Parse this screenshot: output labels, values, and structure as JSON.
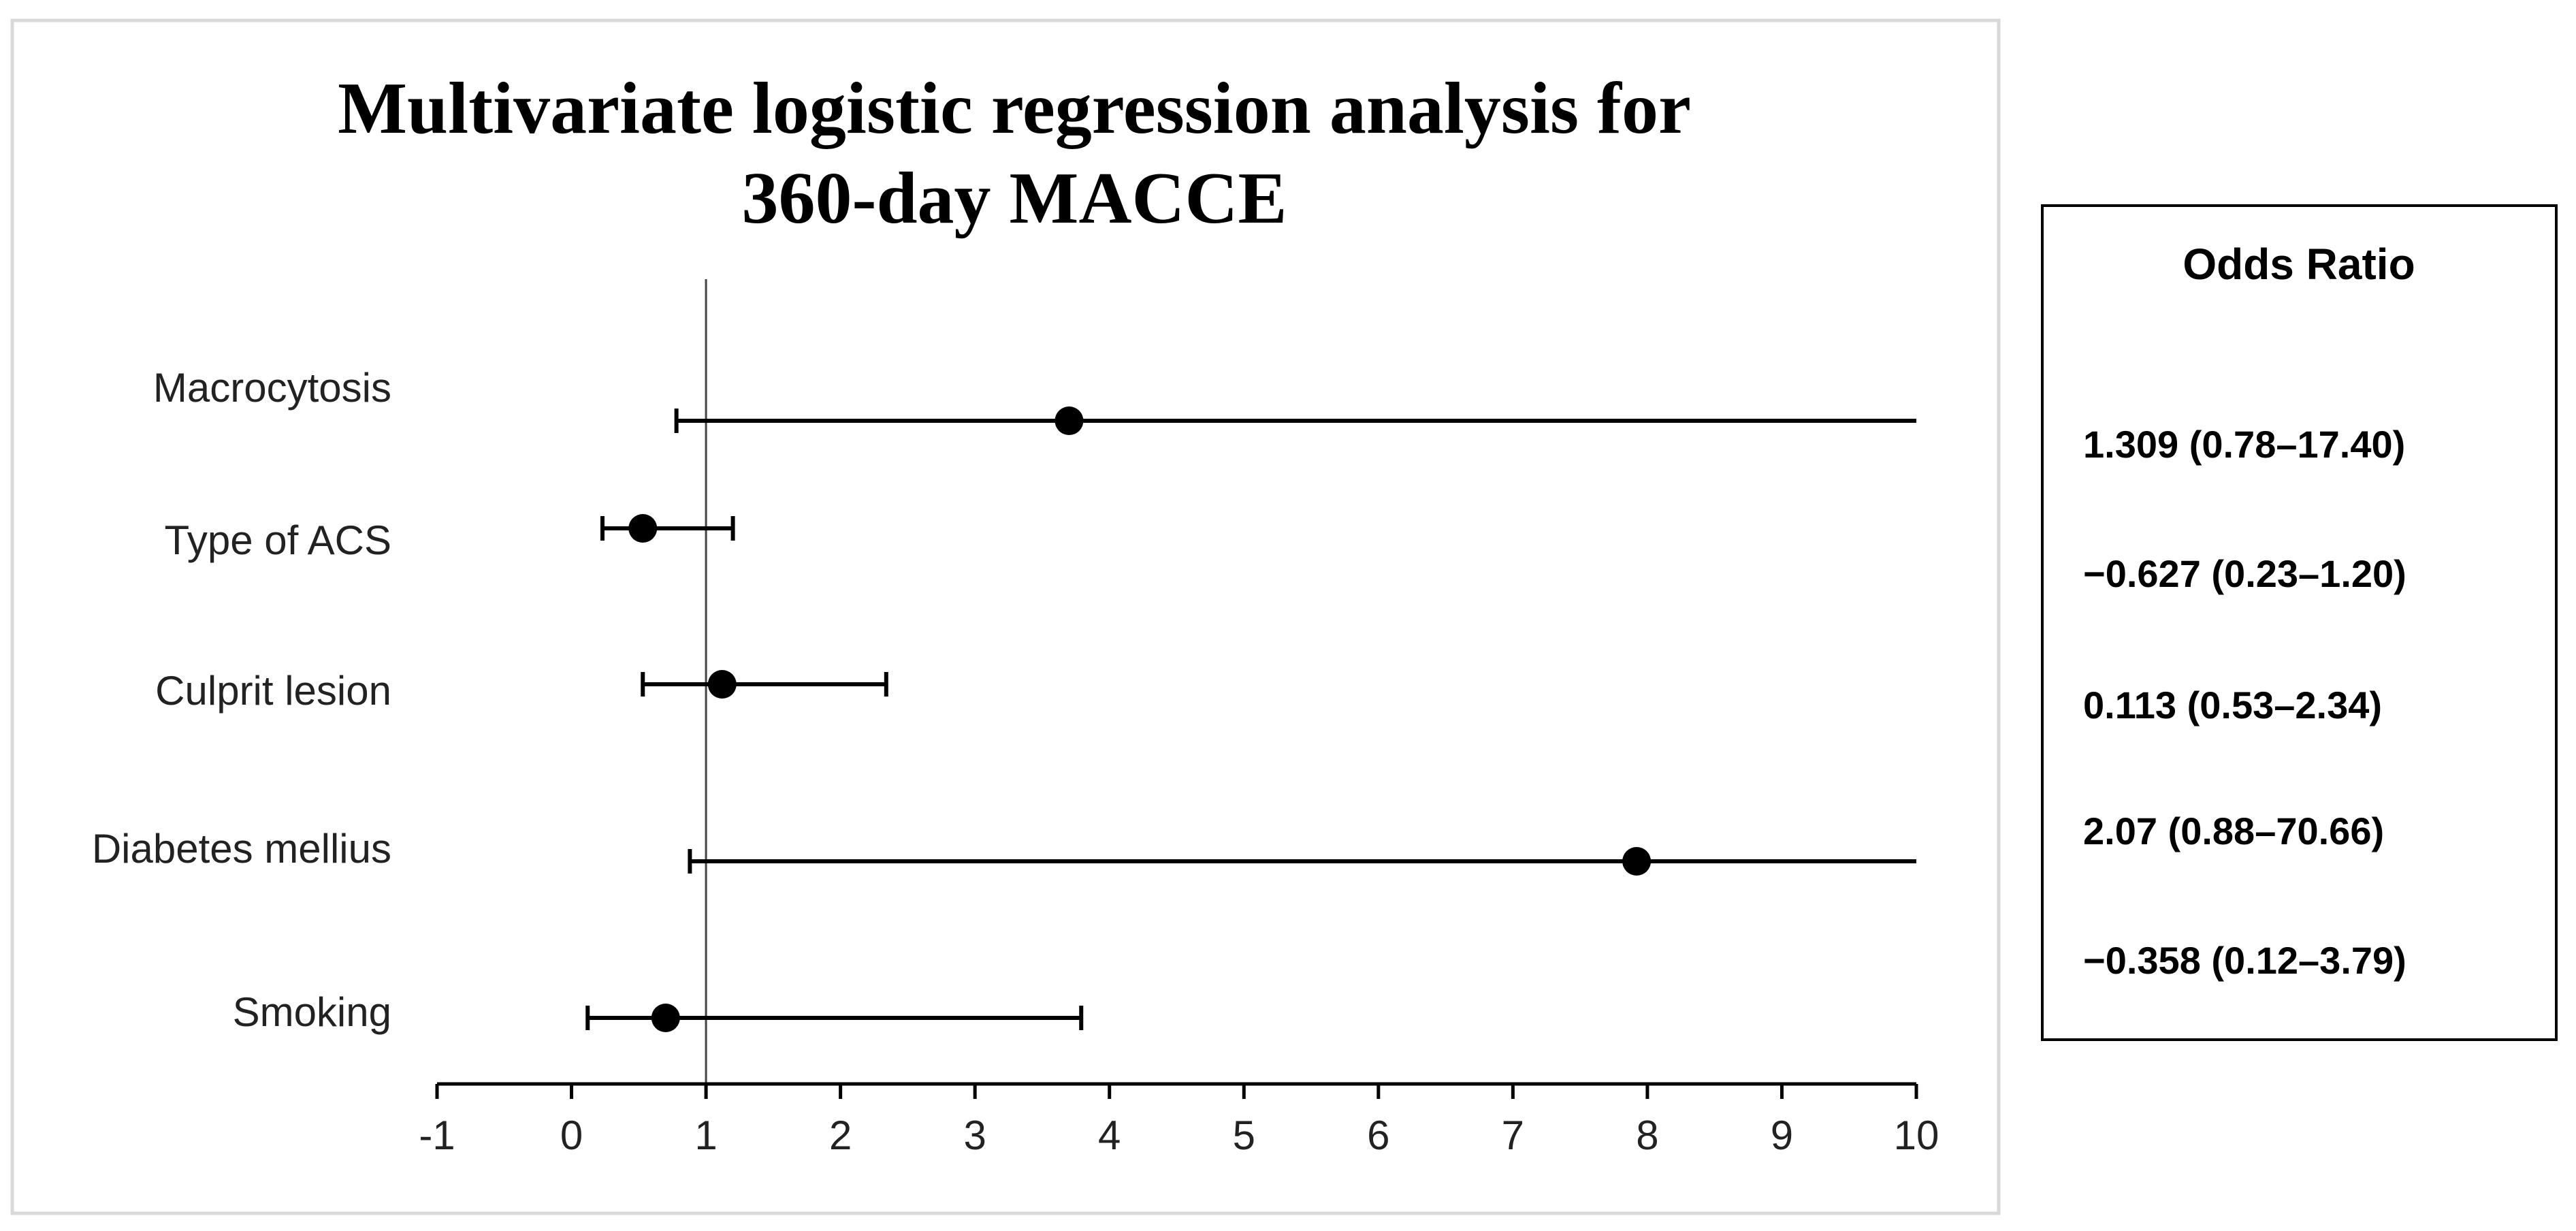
{
  "chart_data": {
    "type": "scatter",
    "subtype": "forest-plot",
    "title_lines": [
      "Multivariate logistic regression analysis for",
      "360-day MACCE"
    ],
    "xlabel": "",
    "ylabel": "",
    "xlim": [
      -1,
      10
    ],
    "x_ticks": [
      "-1",
      "0",
      "1",
      "2",
      "3",
      "4",
      "5",
      "6",
      "7",
      "8",
      "9",
      "10"
    ],
    "reference_line_x": 1,
    "grid": false,
    "categories": [
      "Macrocytosis",
      "Type of ACS",
      "Culprit lesion",
      "Diabetes mellius",
      "Smoking"
    ],
    "points": [
      {
        "label": "Macrocytosis",
        "estimate": 3.7,
        "lower": 0.78,
        "upper": 10
      },
      {
        "label": "Type of ACS",
        "estimate": 0.53,
        "lower": 0.23,
        "upper": 1.2
      },
      {
        "label": "Culprit lesion",
        "estimate": 1.12,
        "lower": 0.53,
        "upper": 2.34
      },
      {
        "label": "Diabetes mellius",
        "estimate": 7.92,
        "lower": 0.88,
        "upper": 10
      },
      {
        "label": "Smoking",
        "estimate": 0.7,
        "lower": 0.12,
        "upper": 3.79
      }
    ]
  },
  "odds_ratio_panel": {
    "title": "Odds Ratio",
    "values": [
      "1.309 (0.78–17.40)",
      "−0.627 (0.23–1.20)",
      "0.113 (0.53–2.34)",
      "2.07 (0.88–70.66)",
      "−0.358 (0.12–3.79)"
    ]
  },
  "colors": {
    "marker": "#000000",
    "line": "#000000",
    "frame": "#d9d9d9",
    "background": "#ffffff"
  }
}
